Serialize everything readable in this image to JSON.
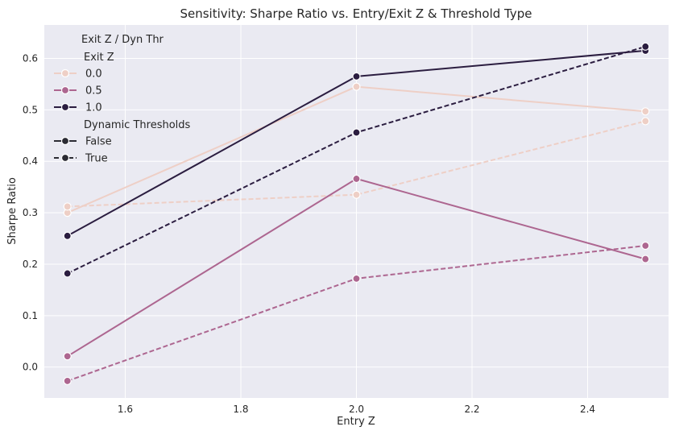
{
  "chart_data": {
    "type": "line",
    "title": "Sensitivity: Sharpe Ratio vs. Entry/Exit Z & Threshold Type",
    "xlabel": "Entry Z",
    "ylabel": "Sharpe Ratio",
    "xlim": [
      1.46,
      2.54
    ],
    "ylim": [
      -0.06,
      0.665
    ],
    "x_ticks": [
      1.6,
      1.8,
      2.0,
      2.2,
      2.4
    ],
    "x_tick_labels": [
      "1.6",
      "1.8",
      "2.0",
      "2.2",
      "2.4"
    ],
    "y_ticks": [
      0.0,
      0.1,
      0.2,
      0.3,
      0.4,
      0.5,
      0.6
    ],
    "y_tick_labels": [
      "0.0",
      "0.1",
      "0.2",
      "0.3",
      "0.4",
      "0.5",
      "0.6"
    ],
    "grid": true,
    "background": "#eaeaf2",
    "x": [
      1.5,
      2.0,
      2.5
    ],
    "series": [
      {
        "name": "0.0",
        "exit_z": "0.0",
        "dynamic": "False",
        "color": "#eecfc6",
        "dash": "solid",
        "values": [
          0.3,
          0.545,
          0.497
        ]
      },
      {
        "name": "0.0",
        "exit_z": "0.0",
        "dynamic": "True",
        "color": "#eecfc6",
        "dash": "dashed",
        "values": [
          0.312,
          0.335,
          0.478
        ]
      },
      {
        "name": "0.5",
        "exit_z": "0.5",
        "dynamic": "False",
        "color": "#ad6690",
        "dash": "solid",
        "values": [
          0.021,
          0.366,
          0.21
        ]
      },
      {
        "name": "0.5",
        "exit_z": "0.5",
        "dynamic": "True",
        "color": "#ad6690",
        "dash": "dashed",
        "values": [
          -0.027,
          0.172,
          0.236
        ]
      },
      {
        "name": "1.0",
        "exit_z": "1.0",
        "dynamic": "False",
        "color": "#2b1d40",
        "dash": "solid",
        "values": [
          0.255,
          0.565,
          0.615
        ]
      },
      {
        "name": "1.0",
        "exit_z": "1.0",
        "dynamic": "True",
        "color": "#2b1d40",
        "dash": "dashed",
        "values": [
          0.182,
          0.456,
          0.623
        ]
      }
    ],
    "legend": {
      "placement": "top-left",
      "title": "Exit Z / Dyn Thr",
      "hue_heading": "Exit Z",
      "hue_entries": [
        {
          "label": "0.0",
          "color": "#eecfc6"
        },
        {
          "label": "0.5",
          "color": "#ad6690"
        },
        {
          "label": "1.0",
          "color": "#2b1d40"
        }
      ],
      "style_heading": "Dynamic Thresholds",
      "style_entries": [
        {
          "label": "False",
          "dash": "solid",
          "color": "#2b2b33"
        },
        {
          "label": "True",
          "dash": "dashed",
          "color": "#2b2b33"
        }
      ]
    }
  }
}
